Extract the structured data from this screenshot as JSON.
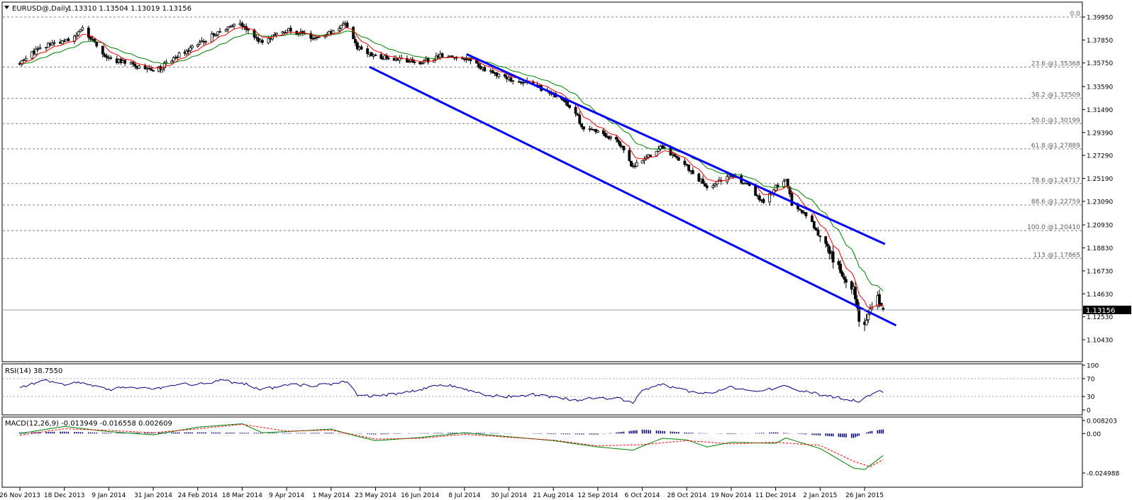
{
  "header": {
    "symbol_label": "EURUSD@,Daily",
    "ohlc_label": "1.13310 1.13504 1.13019 1.13156"
  },
  "price_axis": {
    "labels": [
      "1.39950",
      "1.37850",
      "1.35750",
      "1.33590",
      "1.31490",
      "1.29390",
      "1.27290",
      "1.25190",
      "1.23090",
      "1.20930",
      "1.18830",
      "1.16730",
      "1.14630",
      "1.12530",
      "1.10430"
    ],
    "current_price": 1.13156,
    "current_price_label": "1.13156"
  },
  "fibonacci": {
    "levels": [
      {
        "label": "0.0",
        "price": 1.3995
      },
      {
        "label": "23.6   @1.35368",
        "price": 1.35368
      },
      {
        "label": "38.2   @1.32509",
        "price": 1.32509
      },
      {
        "label": "50.0   @1.30199",
        "price": 1.30199
      },
      {
        "label": "61.8   @1.27889",
        "price": 1.27889
      },
      {
        "label": "78.6   @1.24717",
        "price": 1.24717
      },
      {
        "label": "88.6   @1.22759",
        "price": 1.22759
      },
      {
        "label": "100.0   @1.20410",
        "price": 1.2041
      },
      {
        "label": "113   @1.17865",
        "price": 1.17865
      }
    ]
  },
  "date_axis": {
    "labels": [
      "26 Nov 2013",
      "18 Dec 2013",
      "9 Jan 2014",
      "31 Jan 2014",
      "24 Feb 2014",
      "18 Mar 2014",
      "9 Apr 2014",
      "1 May 2014",
      "23 May 2014",
      "16 Jun 2014",
      "8 Jul 2014",
      "30 Jul 2014",
      "21 Aug 2014",
      "12 Sep 2014",
      "6 Oct 2014",
      "28 Oct 2014",
      "19 Nov 2014",
      "11 Dec 2014",
      "2 Jan 2015",
      "26 Jan 2015"
    ]
  },
  "rsi": {
    "label": "RSI(14) 38.7550",
    "axis_labels": [
      "100",
      "70",
      "30",
      "0"
    ]
  },
  "macd": {
    "label": "MACD(12,26,9) -0.013949 -0.016558 0.002609",
    "axis_labels": [
      "0.008203",
      "0.00",
      "-0.024988"
    ]
  },
  "colors": {
    "candle": "#000000",
    "ma_fast": "#ff0000",
    "ma_slow": "#008000",
    "channel": "#0000ff",
    "rsi_line": "#000080",
    "macd_hist": "#000080",
    "macd_signal": "#ff0000",
    "macd_main": "#008000",
    "grid": "#808080"
  },
  "chart_data": [
    {
      "type": "candlestick",
      "symbol": "EURUSD",
      "timeframe": "Daily",
      "open": 1.1331,
      "high": 1.13504,
      "low": 1.13019,
      "close": 1.13156,
      "ylim": [
        1.1043,
        1.4035
      ],
      "x_range": [
        "26 Nov 2013",
        "5 Feb 2015"
      ],
      "close_path": [
        {
          "date": "26 Nov 2013",
          "close": 1.357
        },
        {
          "date": "6 Dec 2013",
          "close": 1.372
        },
        {
          "date": "18 Dec 2013",
          "close": 1.377
        },
        {
          "date": "27 Dec 2013",
          "close": 1.388
        },
        {
          "date": "9 Jan 2014",
          "close": 1.361
        },
        {
          "date": "20 Jan 2014",
          "close": 1.356
        },
        {
          "date": "31 Jan 2014",
          "close": 1.349
        },
        {
          "date": "12 Feb 2014",
          "close": 1.363
        },
        {
          "date": "24 Feb 2014",
          "close": 1.374
        },
        {
          "date": "7 Mar 2014",
          "close": 1.387
        },
        {
          "date": "13 Mar 2014",
          "close": 1.392
        },
        {
          "date": "18 Mar 2014",
          "close": 1.392
        },
        {
          "date": "28 Mar 2014",
          "close": 1.376
        },
        {
          "date": "9 Apr 2014",
          "close": 1.388
        },
        {
          "date": "22 Apr 2014",
          "close": 1.381
        },
        {
          "date": "1 May 2014",
          "close": 1.386
        },
        {
          "date": "8 May 2014",
          "close": 1.393
        },
        {
          "date": "14 May 2014",
          "close": 1.371
        },
        {
          "date": "23 May 2014",
          "close": 1.364
        },
        {
          "date": "5 Jun 2014",
          "close": 1.361
        },
        {
          "date": "16 Jun 2014",
          "close": 1.357
        },
        {
          "date": "27 Jun 2014",
          "close": 1.365
        },
        {
          "date": "8 Jul 2014",
          "close": 1.362
        },
        {
          "date": "18 Jul 2014",
          "close": 1.352
        },
        {
          "date": "30 Jul 2014",
          "close": 1.343
        },
        {
          "date": "11 Aug 2014",
          "close": 1.338
        },
        {
          "date": "21 Aug 2014",
          "close": 1.328
        },
        {
          "date": "1 Sep 2014",
          "close": 1.313
        },
        {
          "date": "5 Sep 2014",
          "close": 1.295
        },
        {
          "date": "12 Sep 2014",
          "close": 1.296
        },
        {
          "date": "23 Sep 2014",
          "close": 1.285
        },
        {
          "date": "1 Oct 2014",
          "close": 1.262
        },
        {
          "date": "6 Oct 2014",
          "close": 1.268
        },
        {
          "date": "16 Oct 2014",
          "close": 1.281
        },
        {
          "date": "22 Oct 2014",
          "close": 1.272
        },
        {
          "date": "28 Oct 2014",
          "close": 1.263
        },
        {
          "date": "7 Nov 2014",
          "close": 1.243
        },
        {
          "date": "19 Nov 2014",
          "close": 1.254
        },
        {
          "date": "28 Nov 2014",
          "close": 1.246
        },
        {
          "date": "5 Dec 2014",
          "close": 1.228
        },
        {
          "date": "11 Dec 2014",
          "close": 1.245
        },
        {
          "date": "16 Dec 2014",
          "close": 1.249
        },
        {
          "date": "19 Dec 2014",
          "close": 1.229
        },
        {
          "date": "26 Dec 2014",
          "close": 1.219
        },
        {
          "date": "2 Jan 2015",
          "close": 1.199
        },
        {
          "date": "8 Jan 2015",
          "close": 1.181
        },
        {
          "date": "15 Jan 2015",
          "close": 1.162
        },
        {
          "date": "20 Jan 2015",
          "close": 1.152
        },
        {
          "date": "23 Jan 2015",
          "close": 1.122
        },
        {
          "date": "26 Jan 2015",
          "close": 1.121
        },
        {
          "date": "29 Jan 2015",
          "close": 1.134
        },
        {
          "date": "2 Feb 2015",
          "close": 1.142
        },
        {
          "date": "5 Feb 2015",
          "close": 1.1316
        }
      ],
      "channel_lines": [
        {
          "from": {
            "date": "9 Jul 2014",
            "price": 1.3655
          },
          "to": {
            "date": "6 Feb 2015",
            "price": 1.1918
          }
        },
        {
          "from": {
            "date": "20 May 2014",
            "price": 1.3539
          },
          "to": {
            "date": "12 Feb 2015",
            "price": 1.1174
          }
        }
      ]
    },
    {
      "type": "line",
      "title": "RSI(14) 38.7550",
      "ylim": [
        0,
        100
      ],
      "levels": [
        70,
        30
      ],
      "series": [
        {
          "name": "RSI(14)",
          "values": [
            {
              "date": "26 Nov 2013",
              "value": 52
            },
            {
              "date": "9 Dec 2013",
              "value": 65
            },
            {
              "date": "18 Dec 2013",
              "value": 56
            },
            {
              "date": "27 Dec 2013",
              "value": 62
            },
            {
              "date": "9 Jan 2014",
              "value": 44
            },
            {
              "date": "20 Jan 2014",
              "value": 53
            },
            {
              "date": "31 Jan 2014",
              "value": 44
            },
            {
              "date": "12 Feb 2014",
              "value": 58
            },
            {
              "date": "24 Feb 2014",
              "value": 57
            },
            {
              "date": "7 Mar 2014",
              "value": 66
            },
            {
              "date": "18 Mar 2014",
              "value": 60
            },
            {
              "date": "28 Mar 2014",
              "value": 45
            },
            {
              "date": "9 Apr 2014",
              "value": 57
            },
            {
              "date": "22 Apr 2014",
              "value": 53
            },
            {
              "date": "1 May 2014",
              "value": 58
            },
            {
              "date": "8 May 2014",
              "value": 65
            },
            {
              "date": "14 May 2014",
              "value": 34
            },
            {
              "date": "23 May 2014",
              "value": 30
            },
            {
              "date": "5 Jun 2014",
              "value": 38
            },
            {
              "date": "16 Jun 2014",
              "value": 46
            },
            {
              "date": "27 Jun 2014",
              "value": 57
            },
            {
              "date": "8 Jul 2014",
              "value": 48
            },
            {
              "date": "18 Jul 2014",
              "value": 32
            },
            {
              "date": "30 Jul 2014",
              "value": 30
            },
            {
              "date": "11 Aug 2014",
              "value": 34
            },
            {
              "date": "21 Aug 2014",
              "value": 28
            },
            {
              "date": "1 Sep 2014",
              "value": 22
            },
            {
              "date": "12 Sep 2014",
              "value": 27
            },
            {
              "date": "23 Sep 2014",
              "value": 26
            },
            {
              "date": "1 Oct 2014",
              "value": 18
            },
            {
              "date": "6 Oct 2014",
              "value": 45
            },
            {
              "date": "16 Oct 2014",
              "value": 56
            },
            {
              "date": "28 Oct 2014",
              "value": 42
            },
            {
              "date": "7 Nov 2014",
              "value": 36
            },
            {
              "date": "19 Nov 2014",
              "value": 51
            },
            {
              "date": "28 Nov 2014",
              "value": 42
            },
            {
              "date": "11 Dec 2014",
              "value": 47
            },
            {
              "date": "16 Dec 2014",
              "value": 56
            },
            {
              "date": "26 Dec 2014",
              "value": 40
            },
            {
              "date": "8 Jan 2015",
              "value": 30
            },
            {
              "date": "20 Jan 2015",
              "value": 22
            },
            {
              "date": "23 Jan 2015",
              "value": 17
            },
            {
              "date": "29 Jan 2015",
              "value": 34
            },
            {
              "date": "2 Feb 2015",
              "value": 41
            },
            {
              "date": "5 Feb 2015",
              "value": 38.755
            }
          ]
        }
      ]
    },
    {
      "type": "line",
      "title": "MACD(12,26,9) -0.013949 -0.016558 0.002609",
      "ylim": [
        -0.024988,
        0.008203
      ],
      "series": [
        {
          "name": "MACD(12,26,9)",
          "values": [
            {
              "date": "26 Nov 2013",
              "value": 0.0
            },
            {
              "date": "18 Dec 2013",
              "value": 0.0045
            },
            {
              "date": "9 Jan 2014",
              "value": 0.0012
            },
            {
              "date": "31 Jan 2014",
              "value": -0.0008
            },
            {
              "date": "24 Feb 2014",
              "value": 0.004
            },
            {
              "date": "18 Mar 2014",
              "value": 0.0062
            },
            {
              "date": "28 Mar 2014",
              "value": 0.0005
            },
            {
              "date": "9 Apr 2014",
              "value": 0.0012
            },
            {
              "date": "1 May 2014",
              "value": 0.0028
            },
            {
              "date": "14 May 2014",
              "value": -0.0018
            },
            {
              "date": "23 May 2014",
              "value": -0.0045
            },
            {
              "date": "16 Jun 2014",
              "value": -0.0025
            },
            {
              "date": "8 Jul 2014",
              "value": 0.0005
            },
            {
              "date": "30 Jul 2014",
              "value": -0.002
            },
            {
              "date": "21 Aug 2014",
              "value": -0.0045
            },
            {
              "date": "12 Sep 2014",
              "value": -0.0085
            },
            {
              "date": "1 Oct 2014",
              "value": -0.0105
            },
            {
              "date": "16 Oct 2014",
              "value": -0.003
            },
            {
              "date": "28 Oct 2014",
              "value": -0.004
            },
            {
              "date": "7 Nov 2014",
              "value": -0.0085
            },
            {
              "date": "19 Nov 2014",
              "value": -0.0055
            },
            {
              "date": "11 Dec 2014",
              "value": -0.0062
            },
            {
              "date": "16 Dec 2014",
              "value": -0.0028
            },
            {
              "date": "2 Jan 2015",
              "value": -0.0095
            },
            {
              "date": "20 Jan 2015",
              "value": -0.0218
            },
            {
              "date": "26 Jan 2015",
              "value": -0.0228
            },
            {
              "date": "5 Feb 2015",
              "value": -0.013949
            }
          ]
        },
        {
          "name": "Signal",
          "values": [
            {
              "date": "26 Nov 2013",
              "value": -0.001
            },
            {
              "date": "18 Dec 2013",
              "value": 0.003
            },
            {
              "date": "9 Jan 2014",
              "value": 0.002
            },
            {
              "date": "31 Jan 2014",
              "value": 0.0005
            },
            {
              "date": "24 Feb 2014",
              "value": 0.003
            },
            {
              "date": "18 Mar 2014",
              "value": 0.0058
            },
            {
              "date": "9 Apr 2014",
              "value": 0.0015
            },
            {
              "date": "1 May 2014",
              "value": 0.0022
            },
            {
              "date": "23 May 2014",
              "value": -0.0035
            },
            {
              "date": "16 Jun 2014",
              "value": -0.003
            },
            {
              "date": "8 Jul 2014",
              "value": -0.0005
            },
            {
              "date": "21 Aug 2014",
              "value": -0.0042
            },
            {
              "date": "12 Sep 2014",
              "value": -0.0078
            },
            {
              "date": "6 Oct 2014",
              "value": -0.007
            },
            {
              "date": "28 Oct 2014",
              "value": -0.0045
            },
            {
              "date": "19 Nov 2014",
              "value": -0.0065
            },
            {
              "date": "11 Dec 2014",
              "value": -0.0055
            },
            {
              "date": "2 Jan 2015",
              "value": -0.0075
            },
            {
              "date": "20 Jan 2015",
              "value": -0.0175
            },
            {
              "date": "29 Jan 2015",
              "value": -0.021
            },
            {
              "date": "5 Feb 2015",
              "value": -0.016558
            }
          ]
        },
        {
          "name": "Histogram",
          "values": [
            {
              "date": "26 Nov 2013",
              "value": 0.0007
            },
            {
              "date": "18 Dec 2013",
              "value": 0.0012
            },
            {
              "date": "9 Jan 2014",
              "value": 0.0004
            },
            {
              "date": "24 Feb 2014",
              "value": 0.0008
            },
            {
              "date": "18 Mar 2014",
              "value": 0.0005
            },
            {
              "date": "9 Apr 2014",
              "value": 0.0003
            },
            {
              "date": "1 May 2014",
              "value": 0.0005
            },
            {
              "date": "23 May 2014",
              "value": -0.0006
            },
            {
              "date": "16 Jun 2014",
              "value": 0.0002
            },
            {
              "date": "8 Jul 2014",
              "value": 0.0006
            },
            {
              "date": "21 Aug 2014",
              "value": -0.0004
            },
            {
              "date": "12 Sep 2014",
              "value": -0.0006
            },
            {
              "date": "6 Oct 2014",
              "value": 0.0025
            },
            {
              "date": "28 Oct 2014",
              "value": 0.0006
            },
            {
              "date": "19 Nov 2014",
              "value": -0.0004
            },
            {
              "date": "11 Dec 2014",
              "value": 0.0008
            },
            {
              "date": "2 Jan 2015",
              "value": -0.0012
            },
            {
              "date": "20 Jan 2015",
              "value": -0.0028
            },
            {
              "date": "29 Jan 2015",
              "value": 0.0015
            },
            {
              "date": "5 Feb 2015",
              "value": 0.002609
            }
          ]
        }
      ]
    }
  ]
}
